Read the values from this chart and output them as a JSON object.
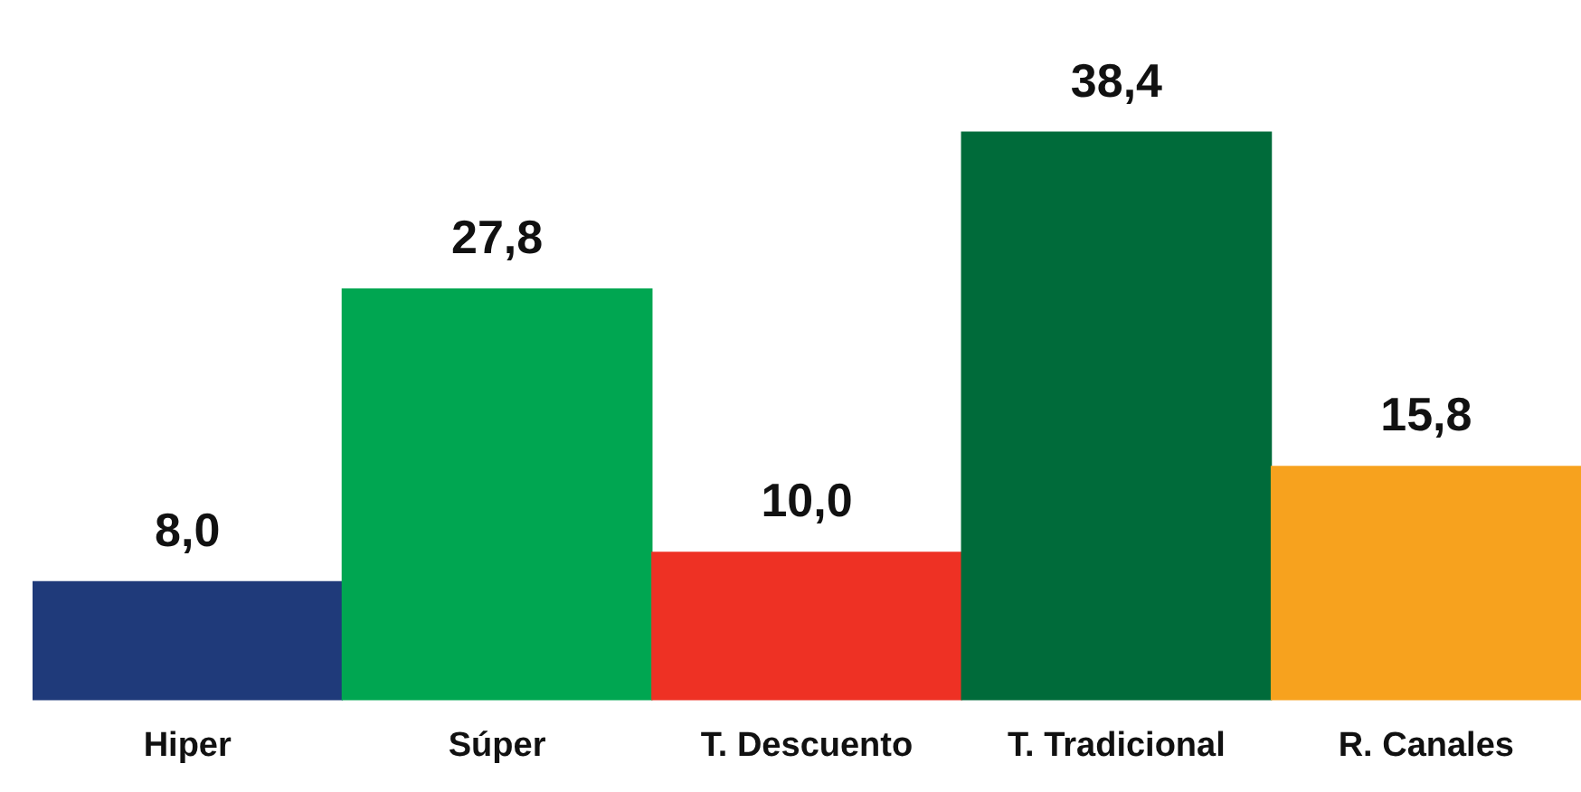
{
  "chart_data": {
    "type": "bar",
    "categories": [
      "Hiper",
      "Súper",
      "T. Descuento",
      "T. Tradicional",
      "R. Canales"
    ],
    "values": [
      8.0,
      27.8,
      10.0,
      38.4,
      15.8
    ],
    "colors": [
      "#1f3a7a",
      "#00a651",
      "#ee3124",
      "#006b3a",
      "#f7a21e"
    ],
    "value_labels": [
      "8,0",
      "27,8",
      "10,0",
      "38,4",
      "15,8"
    ],
    "grid": false,
    "legend": false
  }
}
